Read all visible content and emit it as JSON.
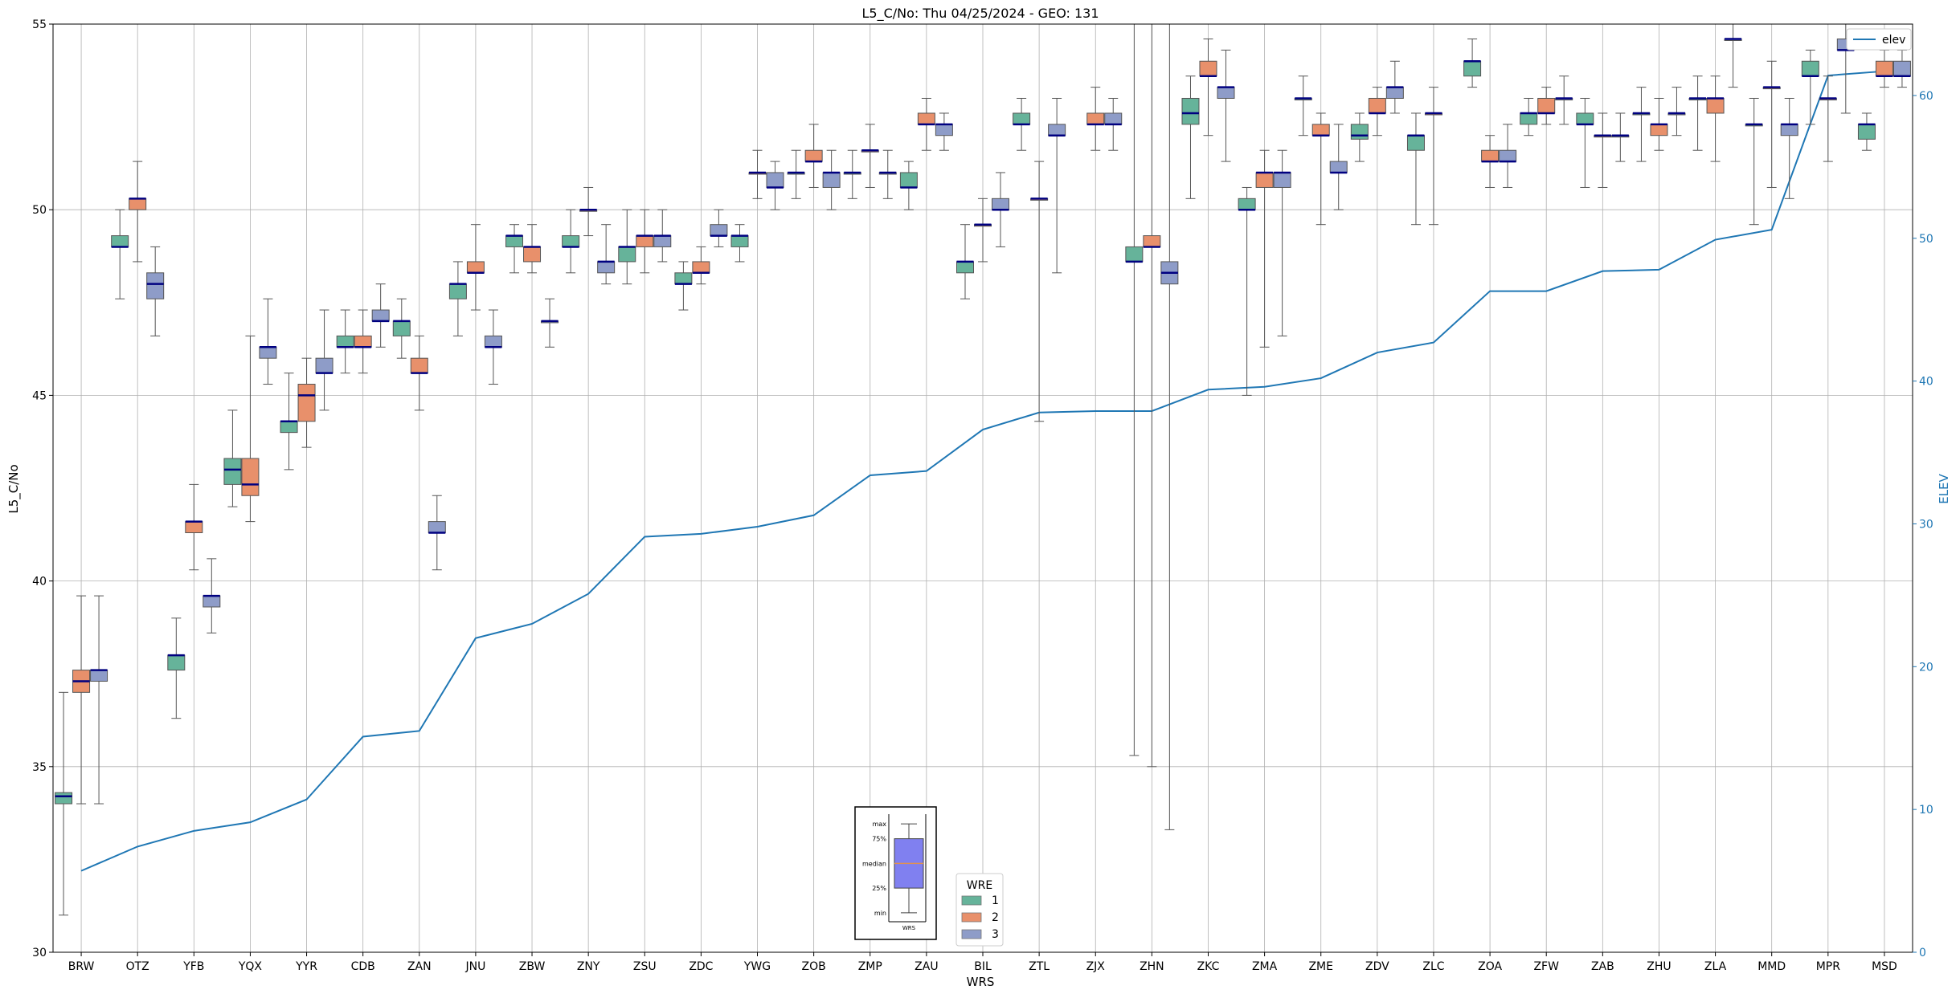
{
  "chart_data": {
    "type": "box",
    "title": "L5_C/No: Thu 04/25/2024 - GEO: 131",
    "xlabel": "WRS",
    "ylabel": "L5_C/No",
    "y2label": "ELEV",
    "ylim": [
      30,
      55
    ],
    "y2lim": [
      0,
      65
    ],
    "yticks": [
      30,
      35,
      40,
      45,
      50,
      55
    ],
    "y2ticks": [
      0,
      10,
      20,
      30,
      40,
      50,
      60
    ],
    "grid": true,
    "categories": [
      "BRW",
      "OTZ",
      "YFB",
      "YQX",
      "YYR",
      "CDB",
      "ZAN",
      "JNU",
      "ZBW",
      "ZNY",
      "ZSU",
      "ZDC",
      "YWG",
      "ZOB",
      "ZMP",
      "ZAU",
      "BIL",
      "ZTL",
      "ZJX",
      "ZHN",
      "ZKC",
      "ZMA",
      "ZME",
      "ZDV",
      "ZLC",
      "ZOA",
      "ZFW",
      "ZAB",
      "ZHU",
      "ZLA",
      "MMD",
      "MPR",
      "MSD"
    ],
    "colors": {
      "1": "#66b39a",
      "2": "#e8906b",
      "3": "#8e9cc8",
      "median": "#000080",
      "elev": "#1f77b4",
      "whisker": "#555555"
    },
    "legend": {
      "title": "WRE",
      "labels": [
        "1",
        "2",
        "3"
      ],
      "placement": "bottom-center"
    },
    "line_legend": {
      "label": "elev",
      "placement": "top-right"
    },
    "series": [
      {
        "name": "1",
        "boxes": [
          {
            "cat": 0,
            "min": 31.0,
            "q1": 34.0,
            "med": 34.2,
            "q3": 34.3,
            "max": 37.0
          },
          {
            "cat": 1,
            "min": 47.6,
            "q1": 49.0,
            "med": 49.0,
            "q3": 49.3,
            "max": 50.0
          },
          {
            "cat": 2,
            "min": 36.3,
            "q1": 37.6,
            "med": 38.0,
            "q3": 38.0,
            "max": 39.0
          },
          {
            "cat": 3,
            "min": 42.0,
            "q1": 42.6,
            "med": 43.0,
            "q3": 43.3,
            "max": 44.6
          },
          {
            "cat": 4,
            "min": 43.0,
            "q1": 44.0,
            "med": 44.3,
            "q3": 44.3,
            "max": 45.6
          },
          {
            "cat": 5,
            "min": 45.6,
            "q1": 46.3,
            "med": 46.3,
            "q3": 46.6,
            "max": 47.3
          },
          {
            "cat": 6,
            "min": 46.0,
            "q1": 46.6,
            "med": 47.0,
            "q3": 47.0,
            "max": 47.6
          },
          {
            "cat": 7,
            "min": 46.6,
            "q1": 47.6,
            "med": 48.0,
            "q3": 48.0,
            "max": 48.6
          },
          {
            "cat": 8,
            "min": 48.3,
            "q1": 49.0,
            "med": 49.3,
            "q3": 49.3,
            "max": 49.6
          },
          {
            "cat": 9,
            "min": 48.3,
            "q1": 49.0,
            "med": 49.0,
            "q3": 49.3,
            "max": 50.0
          },
          {
            "cat": 10,
            "min": 48.0,
            "q1": 48.6,
            "med": 49.0,
            "q3": 49.0,
            "max": 50.0
          },
          {
            "cat": 11,
            "min": 47.3,
            "q1": 48.0,
            "med": 48.0,
            "q3": 48.3,
            "max": 48.6
          },
          {
            "cat": 12,
            "min": 48.6,
            "q1": 49.0,
            "med": 49.3,
            "q3": 49.3,
            "max": 49.6
          },
          {
            "cat": 13,
            "min": 50.3,
            "q1": 51.0,
            "med": 51.0,
            "q3": 51.0,
            "max": 51.6
          },
          {
            "cat": 14,
            "min": 50.3,
            "q1": 51.0,
            "med": 51.0,
            "q3": 51.0,
            "max": 51.6
          },
          {
            "cat": 15,
            "min": 50.0,
            "q1": 50.6,
            "med": 50.6,
            "q3": 51.0,
            "max": 51.3
          },
          {
            "cat": 16,
            "min": 47.6,
            "q1": 48.3,
            "med": 48.6,
            "q3": 48.6,
            "max": 49.6
          },
          {
            "cat": 17,
            "min": 51.6,
            "q1": 52.3,
            "med": 52.3,
            "q3": 52.6,
            "max": 53.0
          },
          {
            "cat": 19,
            "min": 35.3,
            "q1": 48.6,
            "med": 48.6,
            "q3": 49.0,
            "max": 55.0
          },
          {
            "cat": 20,
            "min": 50.3,
            "q1": 52.3,
            "med": 52.6,
            "q3": 53.0,
            "max": 53.6
          },
          {
            "cat": 21,
            "min": 45.0,
            "q1": 50.0,
            "med": 50.0,
            "q3": 50.3,
            "max": 50.6
          },
          {
            "cat": 22,
            "min": 52.0,
            "q1": 53.0,
            "med": 53.0,
            "q3": 53.0,
            "max": 53.6
          },
          {
            "cat": 23,
            "min": 51.3,
            "q1": 51.9,
            "med": 52.0,
            "q3": 52.3,
            "max": 52.6
          },
          {
            "cat": 24,
            "min": 49.6,
            "q1": 51.6,
            "med": 52.0,
            "q3": 52.0,
            "max": 52.6
          },
          {
            "cat": 25,
            "min": 53.3,
            "q1": 53.6,
            "med": 54.0,
            "q3": 54.0,
            "max": 54.6
          },
          {
            "cat": 26,
            "min": 52.0,
            "q1": 52.3,
            "med": 52.6,
            "q3": 52.6,
            "max": 53.0
          },
          {
            "cat": 27,
            "min": 50.6,
            "q1": 52.3,
            "med": 52.3,
            "q3": 52.6,
            "max": 53.0
          },
          {
            "cat": 28,
            "min": 51.3,
            "q1": 52.6,
            "med": 52.6,
            "q3": 52.6,
            "max": 53.3
          },
          {
            "cat": 29,
            "min": 51.6,
            "q1": 53.0,
            "med": 53.0,
            "q3": 53.0,
            "max": 53.6
          },
          {
            "cat": 30,
            "min": 49.6,
            "q1": 52.3,
            "med": 52.3,
            "q3": 52.3,
            "max": 53.0
          },
          {
            "cat": 31,
            "min": 52.3,
            "q1": 53.6,
            "med": 53.6,
            "q3": 54.0,
            "max": 54.3
          },
          {
            "cat": 32,
            "min": 51.6,
            "q1": 51.9,
            "med": 52.3,
            "q3": 52.3,
            "max": 52.6
          }
        ]
      },
      {
        "name": "2",
        "boxes": [
          {
            "cat": 0,
            "min": 34.0,
            "q1": 37.0,
            "med": 37.3,
            "q3": 37.6,
            "max": 39.6
          },
          {
            "cat": 1,
            "min": 48.6,
            "q1": 50.0,
            "med": 50.3,
            "q3": 50.3,
            "max": 51.3
          },
          {
            "cat": 2,
            "min": 40.3,
            "q1": 41.3,
            "med": 41.6,
            "q3": 41.6,
            "max": 42.6
          },
          {
            "cat": 3,
            "min": 41.6,
            "q1": 42.3,
            "med": 42.6,
            "q3": 43.3,
            "max": 46.6
          },
          {
            "cat": 4,
            "min": 43.6,
            "q1": 44.3,
            "med": 45.0,
            "q3": 45.3,
            "max": 46.0
          },
          {
            "cat": 5,
            "min": 45.6,
            "q1": 46.3,
            "med": 46.3,
            "q3": 46.6,
            "max": 47.3
          },
          {
            "cat": 6,
            "min": 44.6,
            "q1": 45.6,
            "med": 45.6,
            "q3": 46.0,
            "max": 46.6
          },
          {
            "cat": 7,
            "min": 47.3,
            "q1": 48.3,
            "med": 48.3,
            "q3": 48.6,
            "max": 49.6
          },
          {
            "cat": 8,
            "min": 48.3,
            "q1": 48.6,
            "med": 49.0,
            "q3": 49.0,
            "max": 49.6
          },
          {
            "cat": 9,
            "min": 49.3,
            "q1": 50.0,
            "med": 50.0,
            "q3": 50.0,
            "max": 50.6
          },
          {
            "cat": 10,
            "min": 48.3,
            "q1": 49.0,
            "med": 49.3,
            "q3": 49.3,
            "max": 50.0
          },
          {
            "cat": 11,
            "min": 48.0,
            "q1": 48.3,
            "med": 48.3,
            "q3": 48.6,
            "max": 49.0
          },
          {
            "cat": 12,
            "min": 50.3,
            "q1": 51.0,
            "med": 51.0,
            "q3": 51.0,
            "max": 51.6
          },
          {
            "cat": 13,
            "min": 50.6,
            "q1": 51.3,
            "med": 51.3,
            "q3": 51.6,
            "max": 52.3
          },
          {
            "cat": 14,
            "min": 50.6,
            "q1": 51.6,
            "med": 51.6,
            "q3": 51.6,
            "max": 52.3
          },
          {
            "cat": 15,
            "min": 51.6,
            "q1": 52.3,
            "med": 52.3,
            "q3": 52.6,
            "max": 53.0
          },
          {
            "cat": 16,
            "min": 48.6,
            "q1": 49.6,
            "med": 49.6,
            "q3": 49.6,
            "max": 50.3
          },
          {
            "cat": 17,
            "min": 44.3,
            "q1": 50.3,
            "med": 50.3,
            "q3": 50.3,
            "max": 51.3
          },
          {
            "cat": 18,
            "min": 51.6,
            "q1": 52.3,
            "med": 52.3,
            "q3": 52.6,
            "max": 53.3
          },
          {
            "cat": 19,
            "min": 35.0,
            "q1": 49.0,
            "med": 49.0,
            "q3": 49.3,
            "max": 55.0
          },
          {
            "cat": 20,
            "min": 52.0,
            "q1": 53.6,
            "med": 53.6,
            "q3": 54.0,
            "max": 54.6
          },
          {
            "cat": 21,
            "min": 46.3,
            "q1": 50.6,
            "med": 51.0,
            "q3": 51.0,
            "max": 51.6
          },
          {
            "cat": 22,
            "min": 49.6,
            "q1": 52.0,
            "med": 52.0,
            "q3": 52.3,
            "max": 52.6
          },
          {
            "cat": 23,
            "min": 52.0,
            "q1": 52.6,
            "med": 52.6,
            "q3": 53.0,
            "max": 53.3
          },
          {
            "cat": 24,
            "min": 49.6,
            "q1": 52.6,
            "med": 52.6,
            "q3": 52.6,
            "max": 53.3
          },
          {
            "cat": 25,
            "min": 50.6,
            "q1": 51.3,
            "med": 51.3,
            "q3": 51.6,
            "max": 52.0
          },
          {
            "cat": 26,
            "min": 52.3,
            "q1": 52.6,
            "med": 52.6,
            "q3": 53.0,
            "max": 53.3
          },
          {
            "cat": 27,
            "min": 50.6,
            "q1": 52.0,
            "med": 52.0,
            "q3": 52.0,
            "max": 52.6
          },
          {
            "cat": 28,
            "min": 51.6,
            "q1": 52.0,
            "med": 52.3,
            "q3": 52.3,
            "max": 53.0
          },
          {
            "cat": 29,
            "min": 51.3,
            "q1": 52.6,
            "med": 53.0,
            "q3": 53.0,
            "max": 53.6
          },
          {
            "cat": 30,
            "min": 50.6,
            "q1": 53.3,
            "med": 53.3,
            "q3": 53.3,
            "max": 54.0
          },
          {
            "cat": 31,
            "min": 51.3,
            "q1": 53.0,
            "med": 53.0,
            "q3": 53.0,
            "max": 53.6
          },
          {
            "cat": 32,
            "min": 53.3,
            "q1": 53.6,
            "med": 53.6,
            "q3": 54.0,
            "max": 54.3
          }
        ]
      },
      {
        "name": "3",
        "boxes": [
          {
            "cat": 0,
            "min": 34.0,
            "q1": 37.3,
            "med": 37.6,
            "q3": 37.6,
            "max": 39.6
          },
          {
            "cat": 1,
            "min": 46.6,
            "q1": 47.6,
            "med": 48.0,
            "q3": 48.3,
            "max": 49.0
          },
          {
            "cat": 2,
            "min": 38.6,
            "q1": 39.3,
            "med": 39.6,
            "q3": 39.6,
            "max": 40.6
          },
          {
            "cat": 3,
            "min": 45.3,
            "q1": 46.0,
            "med": 46.3,
            "q3": 46.3,
            "max": 47.6
          },
          {
            "cat": 4,
            "min": 44.6,
            "q1": 45.6,
            "med": 45.6,
            "q3": 46.0,
            "max": 47.3
          },
          {
            "cat": 5,
            "min": 46.3,
            "q1": 47.0,
            "med": 47.0,
            "q3": 47.3,
            "max": 48.0
          },
          {
            "cat": 6,
            "min": 40.3,
            "q1": 41.3,
            "med": 41.3,
            "q3": 41.6,
            "max": 42.3
          },
          {
            "cat": 7,
            "min": 45.3,
            "q1": 46.3,
            "med": 46.3,
            "q3": 46.6,
            "max": 47.3
          },
          {
            "cat": 8,
            "min": 46.3,
            "q1": 47.0,
            "med": 47.0,
            "q3": 47.0,
            "max": 47.6
          },
          {
            "cat": 9,
            "min": 48.0,
            "q1": 48.3,
            "med": 48.6,
            "q3": 48.6,
            "max": 49.6
          },
          {
            "cat": 10,
            "min": 48.6,
            "q1": 49.0,
            "med": 49.3,
            "q3": 49.3,
            "max": 50.0
          },
          {
            "cat": 11,
            "min": 49.0,
            "q1": 49.3,
            "med": 49.3,
            "q3": 49.6,
            "max": 50.0
          },
          {
            "cat": 12,
            "min": 50.0,
            "q1": 50.6,
            "med": 50.6,
            "q3": 51.0,
            "max": 51.3
          },
          {
            "cat": 13,
            "min": 50.0,
            "q1": 50.6,
            "med": 51.0,
            "q3": 51.0,
            "max": 51.6
          },
          {
            "cat": 14,
            "min": 50.3,
            "q1": 51.0,
            "med": 51.0,
            "q3": 51.0,
            "max": 51.6
          },
          {
            "cat": 15,
            "min": 51.6,
            "q1": 52.0,
            "med": 52.3,
            "q3": 52.3,
            "max": 52.6
          },
          {
            "cat": 16,
            "min": 49.0,
            "q1": 50.0,
            "med": 50.0,
            "q3": 50.3,
            "max": 51.0
          },
          {
            "cat": 17,
            "min": 48.3,
            "q1": 52.0,
            "med": 52.0,
            "q3": 52.3,
            "max": 53.0
          },
          {
            "cat": 18,
            "min": 51.6,
            "q1": 52.3,
            "med": 52.3,
            "q3": 52.6,
            "max": 53.0
          },
          {
            "cat": 19,
            "min": 33.3,
            "q1": 48.0,
            "med": 48.3,
            "q3": 48.6,
            "max": 55.0
          },
          {
            "cat": 20,
            "min": 51.3,
            "q1": 53.0,
            "med": 53.3,
            "q3": 53.3,
            "max": 54.3
          },
          {
            "cat": 21,
            "min": 46.6,
            "q1": 50.6,
            "med": 51.0,
            "q3": 51.0,
            "max": 51.6
          },
          {
            "cat": 22,
            "min": 50.0,
            "q1": 51.0,
            "med": 51.0,
            "q3": 51.3,
            "max": 52.3
          },
          {
            "cat": 23,
            "min": 52.6,
            "q1": 53.0,
            "med": 53.3,
            "q3": 53.3,
            "max": 54.0
          },
          {
            "cat": 25,
            "min": 50.6,
            "q1": 51.3,
            "med": 51.3,
            "q3": 51.6,
            "max": 52.3
          },
          {
            "cat": 26,
            "min": 52.3,
            "q1": 53.0,
            "med": 53.0,
            "q3": 53.0,
            "max": 53.6
          },
          {
            "cat": 27,
            "min": 51.3,
            "q1": 52.0,
            "med": 52.0,
            "q3": 52.0,
            "max": 52.6
          },
          {
            "cat": 28,
            "min": 52.0,
            "q1": 52.6,
            "med": 52.6,
            "q3": 52.6,
            "max": 53.3
          },
          {
            "cat": 29,
            "min": 53.3,
            "q1": 54.6,
            "med": 54.6,
            "q3": 54.6,
            "max": 55.0
          },
          {
            "cat": 30,
            "min": 50.3,
            "q1": 52.0,
            "med": 52.3,
            "q3": 52.3,
            "max": 53.0
          },
          {
            "cat": 31,
            "min": 52.6,
            "q1": 54.3,
            "med": 54.3,
            "q3": 54.6,
            "max": 55.0
          },
          {
            "cat": 32,
            "min": 53.3,
            "q1": 53.6,
            "med": 53.6,
            "q3": 54.0,
            "max": 54.3
          }
        ]
      }
    ],
    "elev": {
      "name": "elev",
      "values": [
        5.7,
        7.4,
        8.5,
        9.1,
        10.7,
        15.1,
        15.5,
        22.0,
        23.0,
        25.1,
        29.1,
        29.3,
        29.8,
        30.6,
        33.4,
        33.7,
        36.6,
        37.8,
        37.9,
        37.9,
        39.4,
        39.6,
        40.2,
        42.0,
        42.7,
        46.3,
        46.3,
        47.7,
        47.8,
        49.9,
        50.6,
        61.4,
        61.7
      ]
    },
    "inset_key": {
      "labels": [
        "max",
        "75%",
        "median",
        "25%",
        "min"
      ],
      "xlabel": "WRS",
      "stats": {
        "min": 0.05,
        "q1": 0.3,
        "med": 0.55,
        "q3": 0.8,
        "max": 0.95
      }
    }
  }
}
